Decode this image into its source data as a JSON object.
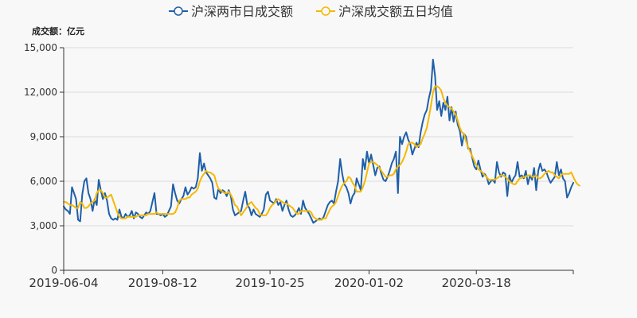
{
  "chart_data": {
    "type": "line",
    "unit_label": "成交额：亿元",
    "ylim": [
      0,
      15000
    ],
    "yticks": [
      0,
      3000,
      6000,
      9000,
      12000,
      15000
    ],
    "ytick_labels": [
      "0",
      "3,000",
      "6,000",
      "9,000",
      "12,000",
      "15,000"
    ],
    "xtick_labels": [
      "2019-06-04",
      "2019-08-12",
      "2019-10-25",
      "2020-01-02",
      "2020-03-18"
    ],
    "xtick_index": [
      0,
      48,
      100,
      148,
      200
    ],
    "legend_position": "top-center",
    "grid": "horizontal",
    "series": [
      {
        "name": "沪深两市日成交额",
        "color": "#1f5fa8",
        "values": [
          4300,
          4100,
          4000,
          3800,
          5600,
          5200,
          4800,
          3400,
          3300,
          5100,
          6000,
          6200,
          5200,
          4800,
          4000,
          4800,
          4400,
          6100,
          5400,
          4800,
          5200,
          4700,
          3800,
          3500,
          3400,
          3500,
          3400,
          4100,
          3600,
          3500,
          3800,
          3600,
          3700,
          4000,
          3500,
          3900,
          3800,
          3600,
          3500,
          3700,
          3900,
          3800,
          4000,
          4600,
          5200,
          3800,
          3800,
          3700,
          3800,
          3600,
          3700,
          4000,
          4300,
          5800,
          5200,
          4700,
          4500,
          4800,
          5000,
          5600,
          5100,
          5300,
          5600,
          5500,
          5600,
          6200,
          7900,
          6700,
          7200,
          6600,
          6400,
          6200,
          5900,
          4900,
          4800,
          5500,
          5200,
          5400,
          5300,
          5000,
          5400,
          5000,
          4100,
          3700,
          3800,
          3900,
          4000,
          4700,
          5300,
          4400,
          4200,
          3700,
          4100,
          3800,
          3700,
          3600,
          3800,
          4100,
          5100,
          5300,
          4700,
          4600,
          4500,
          4800,
          4400,
          4600,
          4000,
          4400,
          4700,
          4100,
          3700,
          3600,
          3700,
          3900,
          4200,
          3800,
          4700,
          4200,
          4000,
          3800,
          3500,
          3200,
          3300,
          3400,
          3500,
          3400,
          3600,
          4000,
          4400,
          4600,
          4700,
          4500,
          5300,
          6000,
          7500,
          6500,
          5800,
          5600,
          5200,
          4500,
          5000,
          5200,
          6200,
          5800,
          5400,
          7500,
          6800,
          8000,
          7200,
          7800,
          7100,
          6400,
          6900,
          7000,
          6500,
          6100,
          6000,
          6300,
          6700,
          7200,
          7500,
          8000,
          5200,
          9000,
          8500,
          9000,
          9300,
          8800,
          8500,
          7800,
          8200,
          8600,
          8300,
          9300,
          10000,
          10500,
          10800,
          11600,
          12200,
          14200,
          13100,
          10800,
          11400,
          10400,
          11300,
          10800,
          11700,
          10100,
          11000,
          10000,
          10700,
          9800,
          9400,
          8400,
          9200,
          9000,
          8200,
          8200,
          7600,
          7000,
          6800,
          7400,
          6800,
          6300,
          6500,
          6300,
          5800,
          6000,
          6100,
          5900,
          7300,
          6600,
          6300,
          6600,
          6500,
          5000,
          6400,
          5900,
          6200,
          6400,
          7300,
          6300,
          6400,
          6200,
          6700,
          5800,
          6400,
          6100,
          6900,
          5400,
          6700,
          7200,
          6700,
          6800,
          6600,
          6200,
          5900,
          6100,
          6300,
          7300,
          6400,
          6800,
          6200,
          6000,
          4900,
          5200,
          5600,
          5900
        ],
        "line_width": 2
      },
      {
        "name": "沪深成交额五日均值",
        "color": "#f5b800",
        "values": [
          4600,
          4600,
          4500,
          4400,
          4400,
          4300,
          4200,
          4200,
          4600,
          4500,
          4200,
          4200,
          4300,
          4500,
          4600,
          4700,
          5200,
          5400,
          5400,
          5200,
          4900,
          4900,
          5000,
          5100,
          4700,
          4300,
          3900,
          3600,
          3500,
          3500,
          3500,
          3600,
          3600,
          3600,
          3600,
          3600,
          3700,
          3700,
          3700,
          3700,
          3700,
          3800,
          3800,
          3800,
          3800,
          3900,
          3800,
          3800,
          3800,
          3800,
          3800,
          3800,
          3800,
          3800,
          3900,
          4200,
          4700,
          4800,
          4800,
          4800,
          4900,
          4900,
          5100,
          5200,
          5300,
          5500,
          6000,
          6300,
          6500,
          6700,
          6600,
          6600,
          6500,
          6400,
          5900,
          5500,
          5400,
          5300,
          5200,
          5200,
          5300,
          5100,
          4800,
          4400,
          4300,
          4000,
          3700,
          3900,
          4100,
          4300,
          4500,
          4600,
          4400,
          4200,
          4100,
          3800,
          3700,
          3700,
          3700,
          3900,
          4200,
          4400,
          4500,
          4700,
          4800,
          4700,
          4600,
          4500,
          4500,
          4400,
          4300,
          4200,
          4000,
          3800,
          3800,
          4000,
          4000,
          4000,
          4000,
          4000,
          3900,
          3600,
          3500,
          3400,
          3400,
          3400,
          3500,
          3500,
          3800,
          4100,
          4300,
          4400,
          4600,
          5000,
          5400,
          5700,
          5900,
          6000,
          6300,
          6200,
          5900,
          5700,
          5300,
          5300,
          5300,
          5600,
          6000,
          6600,
          7200,
          7300,
          7300,
          7200,
          7100,
          6900,
          6700,
          6500,
          6300,
          6300,
          6400,
          6400,
          6500,
          6800,
          7000,
          7100,
          7300,
          7600,
          8000,
          8500,
          8600,
          8600,
          8500,
          8300,
          8400,
          8500,
          8900,
          9200,
          9600,
          10300,
          11100,
          12000,
          12400,
          12400,
          12300,
          12100,
          11600,
          11300,
          11100,
          11000,
          10900,
          10700,
          10500,
          10100,
          9600,
          9300,
          9200,
          8700,
          8300,
          8000,
          7700,
          7400,
          7100,
          6800,
          6700,
          6600,
          6400,
          6300,
          6100,
          6100,
          6100,
          6100,
          6200,
          6300,
          6400,
          6400,
          6300,
          6200,
          6000,
          5900,
          5800,
          5800,
          6000,
          6200,
          6200,
          6300,
          6300,
          6400,
          6400,
          6300,
          6300,
          6400,
          6200,
          6200,
          6300,
          6500,
          6600,
          6700,
          6600,
          6600,
          6400,
          6300,
          6200,
          6400,
          6500,
          6500,
          6500,
          6500,
          6600,
          6300,
          6000,
          5800,
          5700
        ]
      }
    ]
  }
}
